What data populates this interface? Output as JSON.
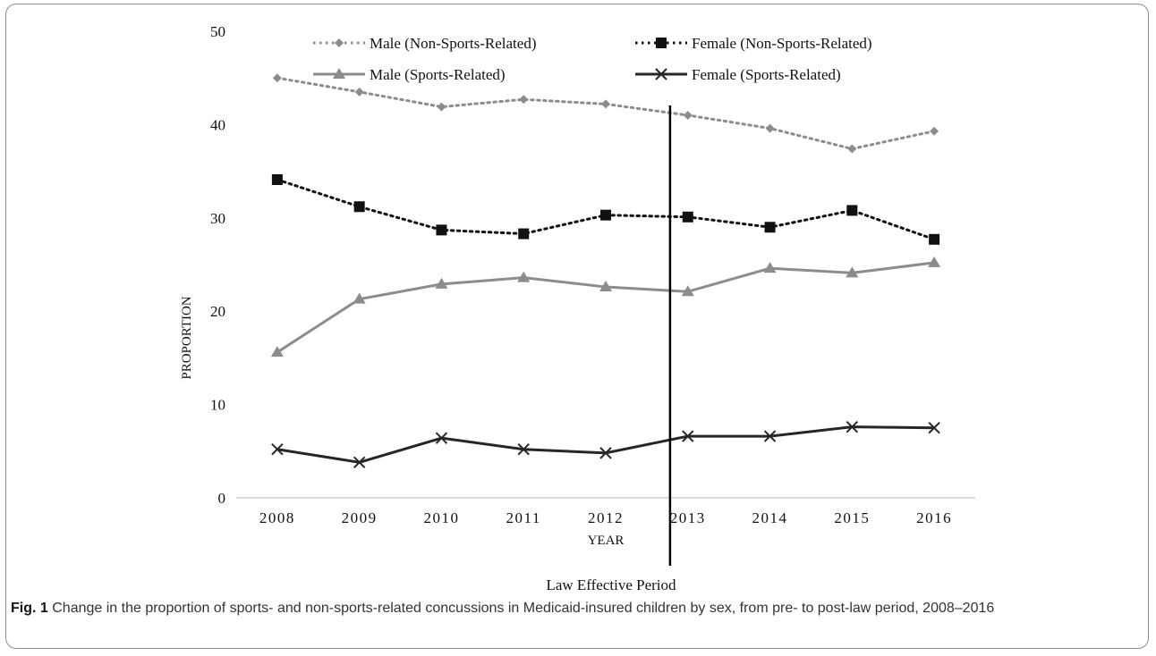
{
  "chart_data": {
    "type": "line",
    "ylabel": "PROPORTION",
    "xlabel": "YEAR",
    "ylim": [
      0,
      50
    ],
    "yticks": [
      0,
      10,
      20,
      30,
      40,
      50
    ],
    "x": [
      "2008",
      "2009",
      "2010",
      "2011",
      "2012",
      "2013",
      "2014",
      "2015",
      "2016"
    ],
    "legend_placement": "top",
    "series": [
      {
        "name": "Male (Non-Sports-Related)",
        "values": [
          45.0,
          43.5,
          41.9,
          42.7,
          42.2,
          41.0,
          39.6,
          37.4,
          39.3
        ],
        "color": "#8c8c8c",
        "marker": "diamond",
        "line": "dotted"
      },
      {
        "name": "Female (Non-Sports-Related)",
        "values": [
          34.1,
          31.2,
          28.7,
          28.3,
          30.3,
          30.1,
          29.0,
          30.8,
          27.7
        ],
        "color": "#111111",
        "marker": "square",
        "line": "dotted"
      },
      {
        "name": "Male (Sports-Related)",
        "values": [
          15.6,
          21.3,
          22.9,
          23.6,
          22.6,
          22.1,
          24.6,
          24.1,
          25.2
        ],
        "color": "#8c8c8c",
        "marker": "triangle",
        "line": "solid"
      },
      {
        "name": "Female (Sports-Related)",
        "values": [
          5.2,
          3.8,
          6.4,
          5.2,
          4.8,
          6.6,
          6.6,
          7.6,
          7.5
        ],
        "color": "#262626",
        "marker": "x",
        "line": "solid"
      }
    ],
    "annotation": {
      "label": "Law Effective Period",
      "between": [
        "2012",
        "2013"
      ]
    }
  },
  "caption": {
    "label": "Fig. 1",
    "text": "Change in the proportion of sports- and non-sports-related concussions in Medicaid-insured children by sex, from pre- to post-law period, 2008–2016"
  }
}
